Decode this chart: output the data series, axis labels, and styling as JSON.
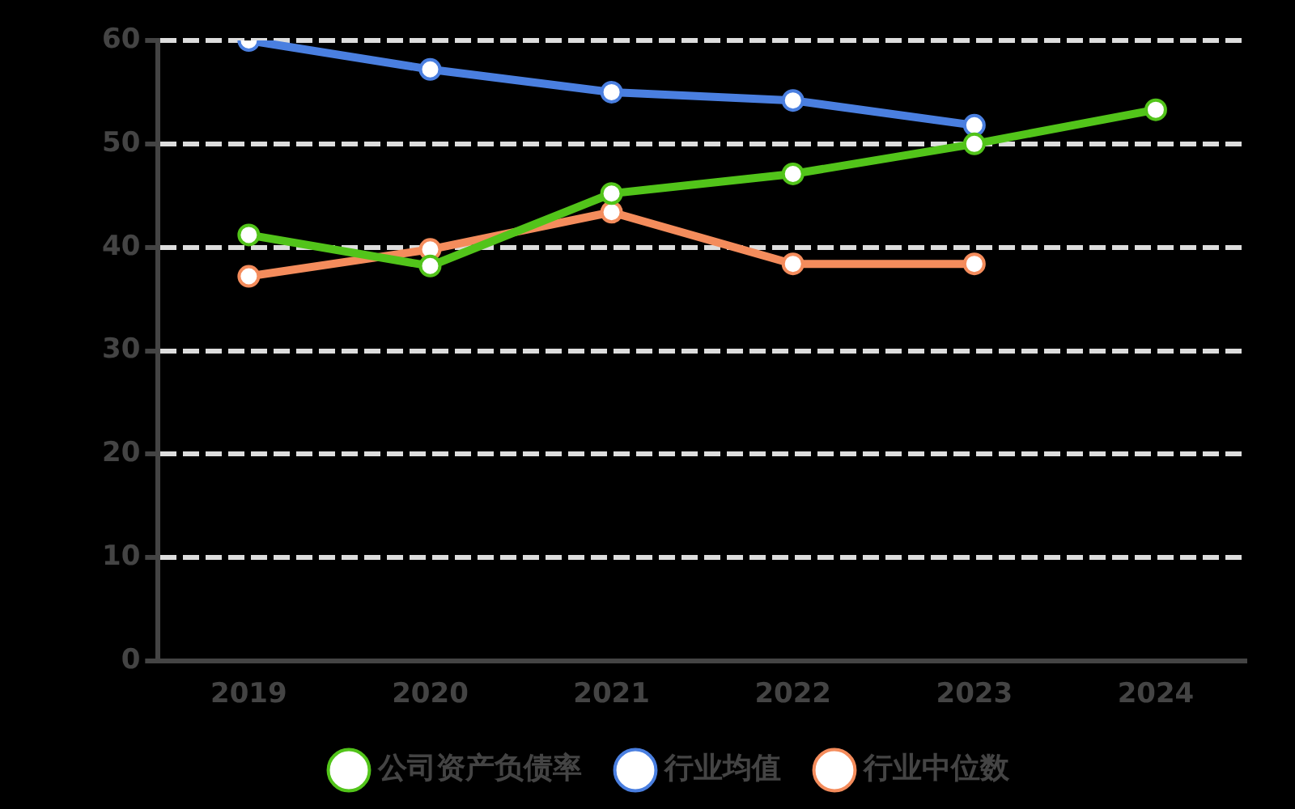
{
  "chart_data": {
    "type": "line",
    "categories": [
      "2019",
      "2020",
      "2021",
      "2022",
      "2023",
      "2024"
    ],
    "series": [
      {
        "name": "公司资产负债率",
        "color": "#52c41a",
        "values": [
          41.2,
          38.2,
          45.2,
          47.1,
          50,
          53.3
        ]
      },
      {
        "name": "行业均值",
        "color": "#4a7fe0",
        "values": [
          60,
          57.2,
          55,
          54.2,
          51.8,
          null
        ]
      },
      {
        "name": "行业中位数",
        "color": "#f48c5c",
        "values": [
          37.2,
          39.8,
          43.4,
          38.4,
          38.4,
          null
        ]
      }
    ],
    "ylim": [
      0,
      60
    ],
    "yticks": [
      0,
      10,
      20,
      30,
      40,
      50,
      60
    ],
    "grid": "y",
    "legend": "bottom",
    "marker": "circle",
    "line_style": "solid"
  }
}
